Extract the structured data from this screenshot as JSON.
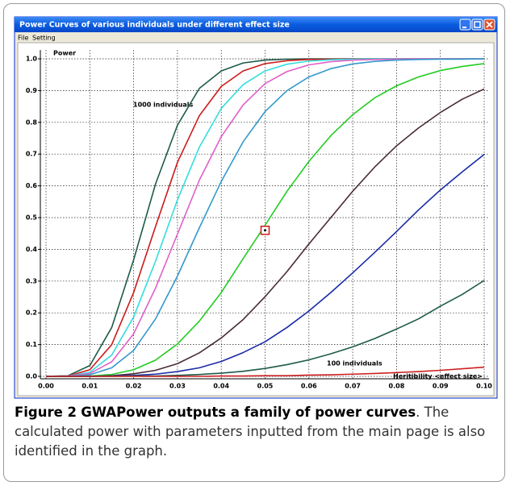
{
  "window": {
    "title": "Power Curves of various individuals under different effect size",
    "menu": [
      "File",
      "Setting"
    ]
  },
  "chart_data": {
    "type": "line",
    "y_label": "Power",
    "x_label": "Heritibility <effect size>",
    "annotations": [
      "1000 individuals",
      "100 individuals"
    ],
    "x": [
      0,
      0.005,
      0.01,
      0.015,
      0.02,
      0.025,
      0.03,
      0.035,
      0.04,
      0.045,
      0.05,
      0.055,
      0.06,
      0.065,
      0.07,
      0.075,
      0.08,
      0.085,
      0.09,
      0.095,
      0.1
    ],
    "series": [
      {
        "color": "#1e5a48",
        "values": [
          0,
          0.002,
          0.034,
          0.154,
          0.367,
          0.606,
          0.791,
          0.907,
          0.962,
          0.987,
          0.996,
          0.999,
          1,
          1,
          1,
          1,
          1,
          1,
          1,
          1,
          1
        ]
      },
      {
        "color": "#cc1a1a",
        "values": [
          0,
          0.001,
          0.021,
          0.1,
          0.264,
          0.472,
          0.674,
          0.821,
          0.913,
          0.962,
          0.985,
          0.994,
          0.998,
          0.999,
          1,
          1,
          1,
          1,
          1,
          1,
          1
        ]
      },
      {
        "color": "#33dddd",
        "values": [
          0,
          0.001,
          0.013,
          0.067,
          0.187,
          0.363,
          0.556,
          0.722,
          0.844,
          0.919,
          0.962,
          0.983,
          0.993,
          0.997,
          0.999,
          1,
          1,
          1,
          1,
          1,
          1
        ]
      },
      {
        "color": "#e060c8",
        "values": [
          0,
          0.001,
          0.009,
          0.046,
          0.134,
          0.278,
          0.448,
          0.618,
          0.755,
          0.855,
          0.922,
          0.96,
          0.981,
          0.991,
          0.996,
          0.998,
          0.999,
          1,
          1,
          1,
          1
        ]
      },
      {
        "color": "#3399cc",
        "values": [
          0,
          0,
          0.005,
          0.027,
          0.082,
          0.181,
          0.316,
          0.468,
          0.614,
          0.739,
          0.834,
          0.9,
          0.943,
          0.969,
          0.984,
          0.992,
          0.996,
          0.998,
          0.999,
          0.999,
          1
        ]
      },
      {
        "color": "#22cc22",
        "values": [
          0,
          0,
          0.001,
          0.006,
          0.021,
          0.051,
          0.102,
          0.174,
          0.264,
          0.371,
          0.476,
          0.583,
          0.677,
          0.758,
          0.824,
          0.877,
          0.915,
          0.943,
          0.963,
          0.976,
          0.985
        ]
      },
      {
        "color": "#4a2a3a",
        "values": [
          0,
          0,
          0,
          0.002,
          0.008,
          0.019,
          0.04,
          0.074,
          0.121,
          0.179,
          0.251,
          0.33,
          0.417,
          0.5,
          0.583,
          0.659,
          0.726,
          0.782,
          0.831,
          0.873,
          0.905
        ]
      },
      {
        "color": "#1a2aa8",
        "values": [
          0,
          0,
          0,
          0.001,
          0.003,
          0.007,
          0.015,
          0.027,
          0.047,
          0.075,
          0.109,
          0.154,
          0.206,
          0.264,
          0.326,
          0.39,
          0.456,
          0.524,
          0.587,
          0.644,
          0.699
        ]
      },
      {
        "color": "#1e5a48",
        "values": [
          0,
          0,
          0,
          0,
          0.001,
          0.001,
          0.003,
          0.006,
          0.01,
          0.016,
          0.025,
          0.037,
          0.052,
          0.071,
          0.093,
          0.119,
          0.149,
          0.181,
          0.221,
          0.258,
          0.302
        ]
      },
      {
        "color": "#cc2020",
        "values": [
          0,
          0,
          0,
          0,
          0,
          0,
          0,
          0,
          0.001,
          0.001,
          0.002,
          0.002,
          0.004,
          0.005,
          0.007,
          0.009,
          0.012,
          0.015,
          0.019,
          0.024,
          0.029
        ]
      }
    ],
    "marker": {
      "x": 0.05,
      "y": 0.46,
      "color": "#cc1a1a"
    },
    "xlim": [
      0,
      0.1
    ],
    "ylim": [
      0,
      1
    ],
    "xticks": [
      {
        "value": 0,
        "label": "0.00"
      },
      {
        "value": 0.01,
        "label": "0.01"
      },
      {
        "value": 0.02,
        "label": "0.02"
      },
      {
        "value": 0.03,
        "label": "0.03"
      },
      {
        "value": 0.04,
        "label": "0.04"
      },
      {
        "value": 0.05,
        "label": "0.05"
      },
      {
        "value": 0.06,
        "label": "0.06"
      },
      {
        "value": 0.07,
        "label": "0.07"
      },
      {
        "value": 0.08,
        "label": "0.08"
      },
      {
        "value": 0.09,
        "label": "0.09"
      },
      {
        "value": 0.1,
        "label": "0.10"
      }
    ],
    "yticks": [
      {
        "value": 0,
        "label": "0.0"
      },
      {
        "value": 0.1,
        "label": "0.1"
      },
      {
        "value": 0.2,
        "label": "0.2"
      },
      {
        "value": 0.3,
        "label": "0.3"
      },
      {
        "value": 0.4,
        "label": "0.4"
      },
      {
        "value": 0.5,
        "label": "0.5"
      },
      {
        "value": 0.6,
        "label": "0.6"
      },
      {
        "value": 0.7,
        "label": "0.7"
      },
      {
        "value": 0.8,
        "label": "0.8"
      },
      {
        "value": 0.9,
        "label": "0.9"
      },
      {
        "value": 1,
        "label": "1.0"
      }
    ],
    "grid": true
  },
  "caption": {
    "label": "Figure 2",
    "title": "GWAPower outputs a family of power curves",
    "text": ". The calculated power with parameters inputted from the main page is also identified in the graph."
  }
}
